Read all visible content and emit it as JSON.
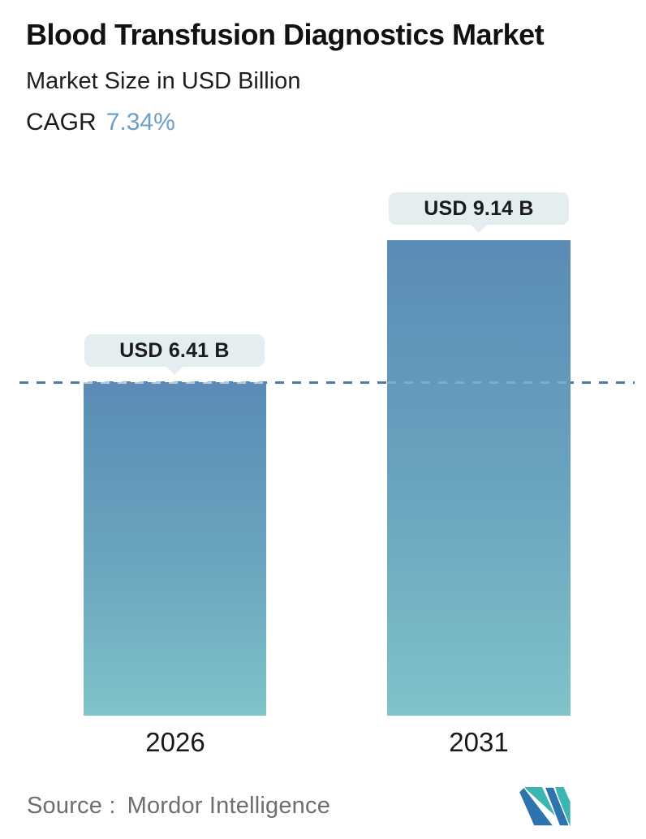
{
  "header": {
    "title": "Blood Transfusion Diagnostics Market",
    "subtitle": "Market Size in USD Billion",
    "cagr_label": "CAGR",
    "cagr_value": "7.34%"
  },
  "chart_data": {
    "type": "bar",
    "title": "Blood Transfusion Diagnostics Market",
    "ylabel": "Market Size in USD Billion",
    "cagr": "7.34%",
    "categories": [
      "2026",
      "2031"
    ],
    "values": [
      6.41,
      9.14
    ],
    "value_labels": [
      "USD 6.41 B",
      "USD 9.14 B"
    ],
    "unit": "USD Billion",
    "reference_line": {
      "value": 6.41,
      "style": "dashed",
      "note": "level of 2026 bar"
    },
    "grid": "off",
    "legend": "none",
    "colors": {
      "bar_gradient_top": "#5a8bb5",
      "bar_gradient_bottom": "#80c3c9",
      "dashed_line": "#4e7ca4",
      "label_bubble_bg": "#e4edf0",
      "cagr_value_text": "#6d9ec7"
    }
  },
  "footer": {
    "source_label": "Source :",
    "source_value": "Mordor Intelligence",
    "logo_name": "mordor-intelligence-logo",
    "logo_colors": {
      "blue": "#2d73ad",
      "teal": "#3bb5b2"
    }
  }
}
